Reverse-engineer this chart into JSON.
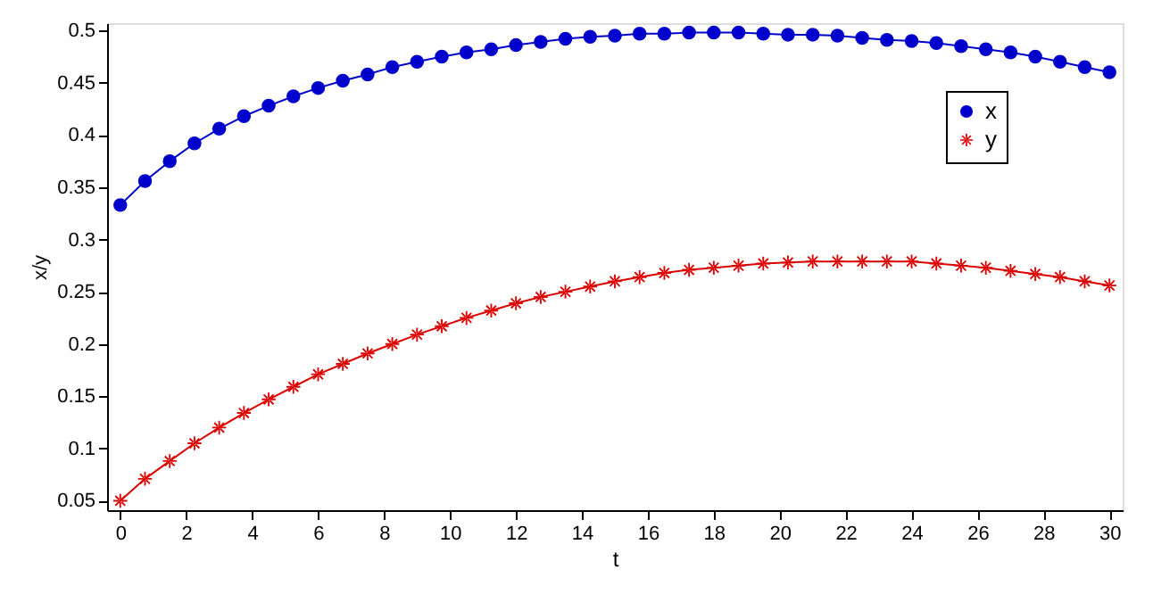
{
  "chart_data": {
    "type": "line",
    "xlabel": "t",
    "ylabel": "x/y",
    "x": [
      0,
      0.75,
      1.5,
      2.25,
      3,
      3.75,
      4.5,
      5.25,
      6,
      6.75,
      7.5,
      8.25,
      9,
      9.75,
      10.5,
      11.25,
      12,
      12.75,
      13.5,
      14.25,
      15,
      15.75,
      16.5,
      17.25,
      18,
      18.75,
      19.5,
      20.25,
      21,
      21.75,
      22.5,
      23.25,
      24,
      24.75,
      25.5,
      26.25,
      27,
      27.75,
      28.5,
      29.25,
      30
    ],
    "series": [
      {
        "name": "x",
        "color": "#0000cc",
        "marker": "circle",
        "values": [
          0.333,
          0.356,
          0.375,
          0.392,
          0.406,
          0.418,
          0.428,
          0.437,
          0.445,
          0.452,
          0.458,
          0.465,
          0.47,
          0.475,
          0.479,
          0.482,
          0.486,
          0.489,
          0.492,
          0.494,
          0.495,
          0.497,
          0.497,
          0.498,
          0.498,
          0.498,
          0.497,
          0.496,
          0.496,
          0.495,
          0.493,
          0.491,
          0.49,
          0.488,
          0.485,
          0.482,
          0.479,
          0.475,
          0.47,
          0.465,
          0.46
        ]
      },
      {
        "name": "y",
        "color": "#dd0000",
        "marker": "star",
        "values": [
          0.05,
          0.071,
          0.088,
          0.105,
          0.12,
          0.134,
          0.147,
          0.159,
          0.171,
          0.181,
          0.191,
          0.2,
          0.209,
          0.217,
          0.225,
          0.232,
          0.239,
          0.245,
          0.25,
          0.255,
          0.26,
          0.264,
          0.268,
          0.271,
          0.273,
          0.275,
          0.277,
          0.278,
          0.279,
          0.279,
          0.279,
          0.279,
          0.279,
          0.277,
          0.275,
          0.273,
          0.27,
          0.267,
          0.264,
          0.26,
          0.256
        ]
      }
    ],
    "xlim": [
      -0.4,
      30.4
    ],
    "xticks": [
      0,
      2,
      4,
      6,
      8,
      10,
      12,
      14,
      16,
      18,
      20,
      22,
      24,
      26,
      28,
      30
    ],
    "ylim": [
      0.041,
      0.507
    ],
    "yticks": [
      0.05,
      0.1,
      0.15,
      0.2,
      0.25,
      0.3,
      0.35,
      0.4,
      0.45,
      0.5
    ],
    "grid": false,
    "legend": "top right",
    "line_style": "solid"
  }
}
